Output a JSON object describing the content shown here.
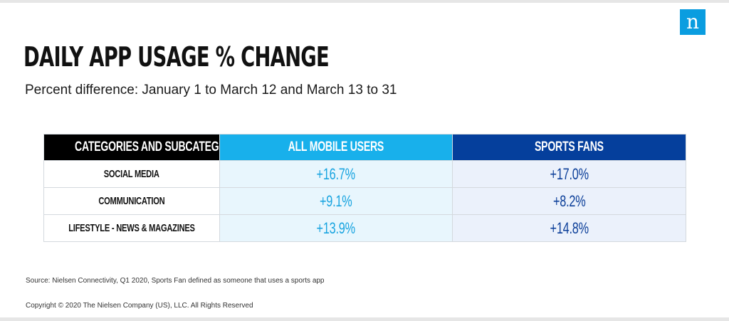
{
  "logo": {
    "letter": "n"
  },
  "chart_data": {
    "type": "table",
    "title": "DAILY APP USAGE % CHANGE",
    "subtitle": "Percent difference: January 1 to March 12 and March 13 to 31",
    "columns": [
      "CATEGORIES AND SUBCATEGORIES",
      "ALL MOBILE USERS",
      "SPORTS FANS"
    ],
    "rows": [
      {
        "category": "SOCIAL MEDIA",
        "all_mobile_users": "+16.7%",
        "sports_fans": "+17.0%"
      },
      {
        "category": "COMMUNICATION",
        "all_mobile_users": "+9.1%",
        "sports_fans": "+8.2%"
      },
      {
        "category": "LIFESTYLE - NEWS & MAGAZINES",
        "all_mobile_users": "+13.9%",
        "sports_fans": "+14.8%"
      }
    ],
    "colors": {
      "category_header": "#000000",
      "all_mobile_users": "#18b0eb",
      "sports_fans": "#053f9c"
    }
  },
  "footer": {
    "source": "Source: Nielsen Connectivity, Q1 2020, Sports Fan defined as someone that uses a sports app",
    "copyright": "Copyright © 2020 The Nielsen Company (US), LLC. All Rights Reserved"
  }
}
